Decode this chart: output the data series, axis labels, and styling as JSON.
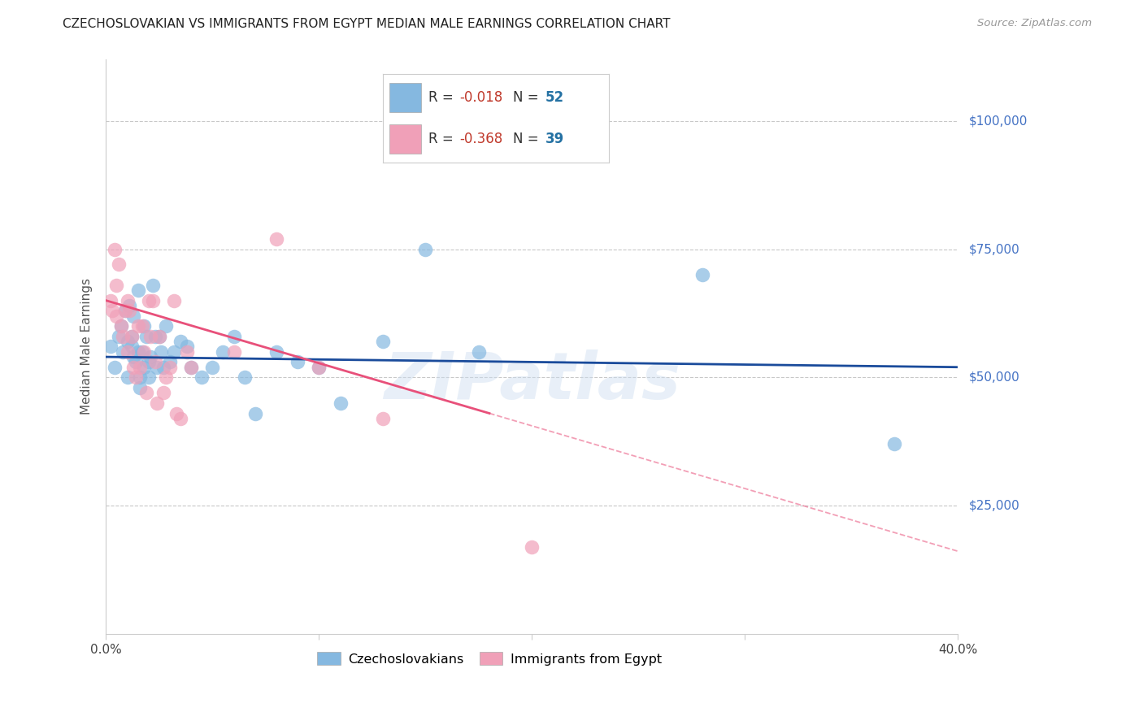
{
  "title": "CZECHOSLOVAKIAN VS IMMIGRANTS FROM EGYPT MEDIAN MALE EARNINGS CORRELATION CHART",
  "source": "Source: ZipAtlas.com",
  "ylabel": "Median Male Earnings",
  "ytick_labels": [
    "$25,000",
    "$50,000",
    "$75,000",
    "$100,000"
  ],
  "ytick_values": [
    25000,
    50000,
    75000,
    100000
  ],
  "ymin": 0,
  "ymax": 112000,
  "xmin": 0.0,
  "xmax": 0.4,
  "R_czech": -0.018,
  "N_czech": 52,
  "R_egypt": -0.368,
  "N_egypt": 39,
  "watermark": "ZIPatlas",
  "background_color": "#ffffff",
  "blue_color": "#85b8e0",
  "pink_color": "#f0a0b8",
  "blue_line_color": "#1a4b9b",
  "pink_line_color": "#e8507a",
  "ytick_color": "#4472c4",
  "czech_x": [
    0.002,
    0.004,
    0.006,
    0.007,
    0.008,
    0.009,
    0.01,
    0.01,
    0.011,
    0.012,
    0.012,
    0.013,
    0.013,
    0.014,
    0.015,
    0.015,
    0.016,
    0.016,
    0.017,
    0.018,
    0.018,
    0.019,
    0.02,
    0.02,
    0.021,
    0.022,
    0.023,
    0.024,
    0.025,
    0.026,
    0.027,
    0.028,
    0.03,
    0.032,
    0.035,
    0.038,
    0.04,
    0.045,
    0.05,
    0.055,
    0.06,
    0.065,
    0.07,
    0.08,
    0.09,
    0.1,
    0.11,
    0.13,
    0.15,
    0.175,
    0.28,
    0.37
  ],
  "czech_y": [
    56000,
    52000,
    58000,
    60000,
    55000,
    63000,
    57000,
    50000,
    64000,
    58000,
    56000,
    54000,
    62000,
    53000,
    67000,
    55000,
    50000,
    48000,
    55000,
    60000,
    52000,
    58000,
    53000,
    50000,
    54000,
    68000,
    58000,
    52000,
    58000,
    55000,
    52000,
    60000,
    53000,
    55000,
    57000,
    56000,
    52000,
    50000,
    52000,
    55000,
    58000,
    50000,
    43000,
    55000,
    53000,
    52000,
    45000,
    57000,
    75000,
    55000,
    70000,
    37000
  ],
  "egypt_x": [
    0.002,
    0.003,
    0.004,
    0.005,
    0.005,
    0.006,
    0.007,
    0.008,
    0.009,
    0.01,
    0.01,
    0.011,
    0.012,
    0.013,
    0.014,
    0.015,
    0.016,
    0.017,
    0.018,
    0.019,
    0.02,
    0.021,
    0.022,
    0.023,
    0.024,
    0.025,
    0.027,
    0.028,
    0.03,
    0.032,
    0.033,
    0.035,
    0.038,
    0.04,
    0.06,
    0.08,
    0.1,
    0.13,
    0.2
  ],
  "egypt_y": [
    65000,
    63000,
    75000,
    68000,
    62000,
    72000,
    60000,
    58000,
    63000,
    65000,
    55000,
    63000,
    58000,
    52000,
    50000,
    60000,
    52000,
    60000,
    55000,
    47000,
    65000,
    58000,
    65000,
    53000,
    45000,
    58000,
    47000,
    50000,
    52000,
    65000,
    43000,
    42000,
    55000,
    52000,
    55000,
    77000,
    52000,
    42000,
    17000
  ]
}
